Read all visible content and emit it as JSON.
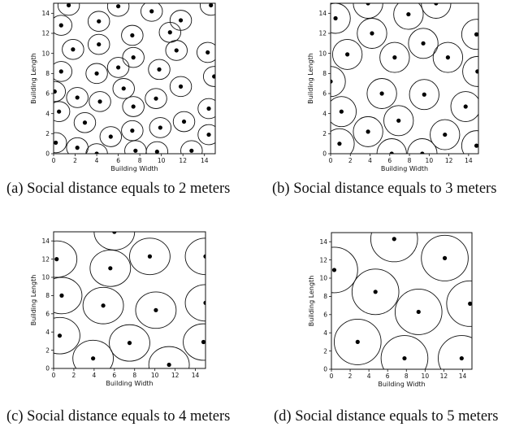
{
  "chart_data": [
    {
      "type": "scatter",
      "caption": "(a) Social distance equals to 2 meters",
      "xlabel": "Building Width",
      "ylabel": "Building Length",
      "xlim": [
        0,
        15
      ],
      "ylim": [
        0,
        15
      ],
      "xticks": [
        0,
        2,
        4,
        6,
        8,
        10,
        12,
        14
      ],
      "yticks": [
        0,
        2,
        4,
        6,
        8,
        10,
        12,
        14
      ],
      "radius": 1,
      "grid": false,
      "points": [
        [
          1.4,
          14.8
        ],
        [
          6.0,
          14.7
        ],
        [
          9.1,
          14.2
        ],
        [
          14.6,
          14.8
        ],
        [
          0.7,
          12.8
        ],
        [
          4.2,
          13.2
        ],
        [
          11.8,
          13.3
        ],
        [
          4.2,
          10.9
        ],
        [
          7.3,
          11.8
        ],
        [
          10.8,
          12.1
        ],
        [
          1.8,
          10.4
        ],
        [
          7.4,
          9.6
        ],
        [
          11.4,
          10.3
        ],
        [
          14.3,
          10.1
        ],
        [
          0.7,
          8.2
        ],
        [
          6.0,
          8.6
        ],
        [
          4.0,
          8.0
        ],
        [
          9.8,
          8.4
        ],
        [
          14.9,
          7.7
        ],
        [
          0.1,
          6.2
        ],
        [
          2.2,
          5.6
        ],
        [
          6.5,
          6.5
        ],
        [
          4.3,
          5.2
        ],
        [
          9.5,
          5.5
        ],
        [
          11.8,
          6.7
        ],
        [
          0.5,
          4.2
        ],
        [
          7.4,
          4.7
        ],
        [
          14.4,
          4.5
        ],
        [
          2.9,
          3.1
        ],
        [
          9.9,
          2.6
        ],
        [
          12.1,
          3.2
        ],
        [
          5.3,
          1.7
        ],
        [
          7.3,
          2.3
        ],
        [
          14.4,
          1.9
        ],
        [
          0.2,
          1.1
        ],
        [
          2.2,
          0.6
        ],
        [
          4.0,
          0.0
        ],
        [
          7.6,
          0.3
        ],
        [
          9.6,
          0.2
        ],
        [
          12.8,
          0.3
        ]
      ]
    },
    {
      "type": "scatter",
      "caption": "(b) Social distance equals to 3 meters",
      "xlabel": "Building Width",
      "ylabel": "Building Length",
      "xlim": [
        0,
        15
      ],
      "ylim": [
        0,
        15
      ],
      "xticks": [
        0,
        2,
        4,
        6,
        8,
        10,
        12,
        14
      ],
      "yticks": [
        0,
        2,
        4,
        6,
        8,
        10,
        12,
        14
      ],
      "radius": 1.5,
      "grid": false,
      "points": [
        [
          3.8,
          15.0
        ],
        [
          7.9,
          13.9
        ],
        [
          10.7,
          15.0
        ],
        [
          0.5,
          13.5
        ],
        [
          4.2,
          12.0
        ],
        [
          9.4,
          11.0
        ],
        [
          14.8,
          11.9
        ],
        [
          1.7,
          9.9
        ],
        [
          6.5,
          9.6
        ],
        [
          11.9,
          9.6
        ],
        [
          0.0,
          7.2
        ],
        [
          14.9,
          8.2
        ],
        [
          5.2,
          6.0
        ],
        [
          9.5,
          5.9
        ],
        [
          1.1,
          4.2
        ],
        [
          13.7,
          4.7
        ],
        [
          3.8,
          2.2
        ],
        [
          6.9,
          3.3
        ],
        [
          11.6,
          1.9
        ],
        [
          0.9,
          1.0
        ],
        [
          6.2,
          0.0
        ],
        [
          9.3,
          0.0
        ],
        [
          14.8,
          0.8
        ]
      ]
    },
    {
      "type": "scatter",
      "caption": "(c) Social distance equals to 4 meters",
      "xlabel": "Building Width",
      "ylabel": "Building Length",
      "xlim": [
        0,
        15
      ],
      "ylim": [
        0,
        15
      ],
      "xticks": [
        0,
        2,
        4,
        6,
        8,
        10,
        12,
        14
      ],
      "yticks": [
        0,
        2,
        4,
        6,
        8,
        10,
        12,
        14
      ],
      "radius": 2,
      "grid": false,
      "points": [
        [
          6.0,
          15.0
        ],
        [
          0.3,
          12.0
        ],
        [
          5.6,
          11.0
        ],
        [
          9.5,
          12.3
        ],
        [
          15.0,
          12.3
        ],
        [
          0.8,
          8.0
        ],
        [
          4.9,
          6.9
        ],
        [
          10.1,
          6.4
        ],
        [
          15.0,
          7.2
        ],
        [
          0.6,
          3.6
        ],
        [
          7.5,
          2.8
        ],
        [
          14.8,
          2.9
        ],
        [
          3.9,
          1.1
        ],
        [
          11.4,
          0.4
        ]
      ]
    },
    {
      "type": "scatter",
      "caption": "(d) Social distance equals to 5 meters",
      "xlabel": "Building Width",
      "ylabel": "Building Length",
      "xlim": [
        0,
        15
      ],
      "ylim": [
        0,
        15
      ],
      "xticks": [
        0,
        2,
        4,
        6,
        8,
        10,
        12,
        14
      ],
      "yticks": [
        0,
        2,
        4,
        6,
        8,
        10,
        12,
        14
      ],
      "radius": 2.5,
      "grid": false,
      "points": [
        [
          6.7,
          14.3
        ],
        [
          12.1,
          12.2
        ],
        [
          0.3,
          10.9
        ],
        [
          4.7,
          8.5
        ],
        [
          9.3,
          6.3
        ],
        [
          14.8,
          7.2
        ],
        [
          2.8,
          3.0
        ],
        [
          7.8,
          1.2
        ],
        [
          13.9,
          1.2
        ]
      ]
    }
  ]
}
